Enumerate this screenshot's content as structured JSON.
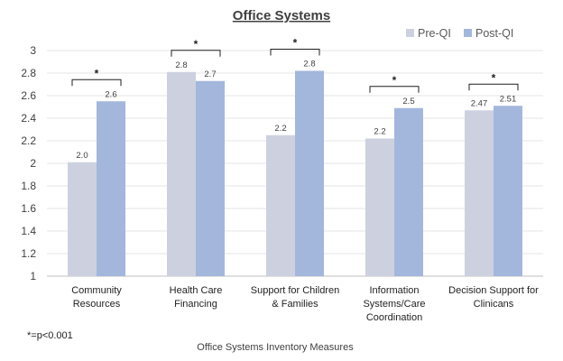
{
  "chart_data": {
    "type": "bar",
    "title": "Office Systems",
    "xlabel": "Office Systems Inventory Measures",
    "ylabel": "",
    "ylim": [
      1,
      3
    ],
    "yticks": [
      "1",
      "1.2",
      "1.4",
      "1.6",
      "1.8",
      "2",
      "2.2",
      "2.4",
      "2.6",
      "2.8",
      "3"
    ],
    "grid": true,
    "legend_position": "top-right",
    "categories": [
      [
        "Community",
        "Resources"
      ],
      [
        "Health Care",
        "Financing"
      ],
      [
        "Support for Children",
        "& Families"
      ],
      [
        "Information",
        "Systems/Care",
        "Coordination"
      ],
      [
        "Decision Support for",
        "Clinicans"
      ]
    ],
    "series": [
      {
        "name": "Pre-QI",
        "color": "#cdd1df",
        "values": [
          2.01,
          2.81,
          2.25,
          2.22,
          2.47
        ],
        "labels": [
          "2.0",
          "2.8",
          "2.2",
          "2.2",
          "2.47"
        ]
      },
      {
        "name": "Post-QI",
        "color": "#a3b6dc",
        "values": [
          2.55,
          2.73,
          2.82,
          2.49,
          2.51
        ],
        "labels": [
          "2.6",
          "2.7",
          "2.8",
          "2.5",
          "2.51"
        ]
      }
    ],
    "significance_marker": "*",
    "significant": [
      true,
      true,
      true,
      true,
      true
    ],
    "footnote": "*=p<0.001"
  }
}
